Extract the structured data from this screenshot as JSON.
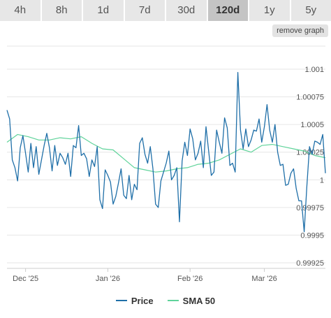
{
  "tabs": [
    {
      "label": "4h",
      "active": false
    },
    {
      "label": "8h",
      "active": false
    },
    {
      "label": "1d",
      "active": false
    },
    {
      "label": "7d",
      "active": false
    },
    {
      "label": "30d",
      "active": false
    },
    {
      "label": "120d",
      "active": true
    },
    {
      "label": "1y",
      "active": false
    },
    {
      "label": "5y",
      "active": false
    }
  ],
  "remove_button": "remove graph",
  "colors": {
    "price": "#1f6fa8",
    "sma": "#5fd39a",
    "grid": "#e6e6e6"
  },
  "chart_data": {
    "type": "line",
    "title": "",
    "xlabel": "",
    "ylabel": "",
    "ylim": [
      0.99925,
      1.001
    ],
    "ytick_labels": [
      "1.001",
      "1.00075",
      "1.0005",
      "1.00025",
      "1",
      "0.99975",
      "0.9995",
      "0.99925"
    ],
    "ytick_values": [
      1.001,
      1.00075,
      1.0005,
      1.00025,
      1.0,
      0.99975,
      0.9995,
      0.99925
    ],
    "xlim": [
      0,
      120
    ],
    "xtick_labels": [
      "Dec '25",
      "Jan '26",
      "Feb '26",
      "Mar '26"
    ],
    "xtick_positions": [
      7,
      38,
      69,
      97
    ],
    "grid": true,
    "legend_position": "bottom-center",
    "series": [
      {
        "name": "Price",
        "x": [
          0,
          1,
          2,
          3,
          4,
          5,
          6,
          7,
          8,
          9,
          10,
          11,
          12,
          13,
          14,
          15,
          16,
          17,
          18,
          19,
          20,
          21,
          22,
          23,
          24,
          25,
          26,
          27,
          28,
          29,
          30,
          31,
          32,
          33,
          34,
          35,
          36,
          37,
          38,
          39,
          40,
          41,
          42,
          43,
          44,
          45,
          46,
          47,
          48,
          49,
          50,
          51,
          52,
          53,
          54,
          55,
          56,
          57,
          58,
          59,
          60,
          61,
          62,
          63,
          64,
          65,
          66,
          67,
          68,
          69,
          70,
          71,
          72,
          73,
          74,
          75,
          76,
          77,
          78,
          79,
          80,
          81,
          82,
          83,
          84,
          85,
          86,
          87,
          88,
          89,
          90,
          91,
          92,
          93,
          94,
          95,
          96,
          97,
          98,
          99,
          100,
          101,
          102,
          103,
          104,
          105,
          106,
          107,
          108,
          109,
          110,
          111,
          112,
          113,
          114,
          115,
          116,
          117,
          118,
          119,
          120
        ],
        "values": [
          1.00063,
          1.00055,
          1.00018,
          1.00011,
          0.99999,
          1.00029,
          1.0004,
          1.00024,
          1.00007,
          1.00033,
          1.00011,
          1.0003,
          1.00005,
          1.00018,
          1.00031,
          1.00042,
          1.00029,
          1.00008,
          1.00031,
          1.00013,
          1.00024,
          1.0002,
          1.00014,
          1.00024,
          1.00003,
          1.00031,
          1.00029,
          1.00049,
          1.00022,
          1.00024,
          1.00019,
          1.00003,
          1.00018,
          1.00012,
          1.0003,
          0.99982,
          0.99974,
          1.00009,
          1.00004,
          0.99998,
          0.99978,
          0.99985,
          0.99997,
          1.0001,
          0.99986,
          0.99983,
          1.00004,
          0.99982,
          0.99996,
          0.99991,
          1.00033,
          1.00038,
          1.00023,
          1.00015,
          1.0003,
          1.0001,
          0.99978,
          0.99975,
          0.99999,
          1.00007,
          1.00015,
          1.00026,
          1.0,
          1.00004,
          1.00011,
          0.99962,
          1.00017,
          1.00034,
          1.00022,
          1.00046,
          1.00037,
          1.00018,
          1.00024,
          1.00035,
          1.00011,
          1.00048,
          1.00026,
          1.00004,
          1.00007,
          1.00045,
          1.00034,
          1.00024,
          1.00056,
          1.00047,
          1.00013,
          1.00015,
          1.00007,
          1.00097,
          1.00045,
          1.00028,
          1.00046,
          1.0003,
          1.00036,
          1.00045,
          1.00044,
          1.00055,
          1.00034,
          1.00048,
          1.00068,
          1.00045,
          1.00034,
          1.0005,
          1.00025,
          1.00013,
          1.00014,
          0.99995,
          0.99996,
          1.00006,
          1.0001,
          0.99992,
          0.99981,
          0.99981,
          0.99953,
          0.99994,
          1.0003,
          1.00023,
          1.00035,
          1.00034,
          1.00032,
          1.00041,
          1.00006
        ]
      },
      {
        "name": "SMA 50",
        "x": [
          0,
          4,
          8,
          12,
          16,
          20,
          24,
          28,
          32,
          36,
          40,
          44,
          48,
          52,
          56,
          60,
          64,
          68,
          72,
          76,
          80,
          84,
          88,
          92,
          96,
          100,
          104,
          108,
          112,
          116,
          120
        ],
        "values": [
          1.00034,
          1.00041,
          1.00039,
          1.00036,
          1.00036,
          1.00038,
          1.00037,
          1.00039,
          1.00033,
          1.00028,
          1.00027,
          1.00019,
          1.00011,
          1.00009,
          1.00007,
          1.00008,
          1.0001,
          1.00011,
          1.00014,
          1.00015,
          1.00018,
          1.00023,
          1.00028,
          1.00025,
          1.00031,
          1.00032,
          1.0003,
          1.00028,
          1.00026,
          1.00022,
          1.0002
        ]
      }
    ]
  }
}
